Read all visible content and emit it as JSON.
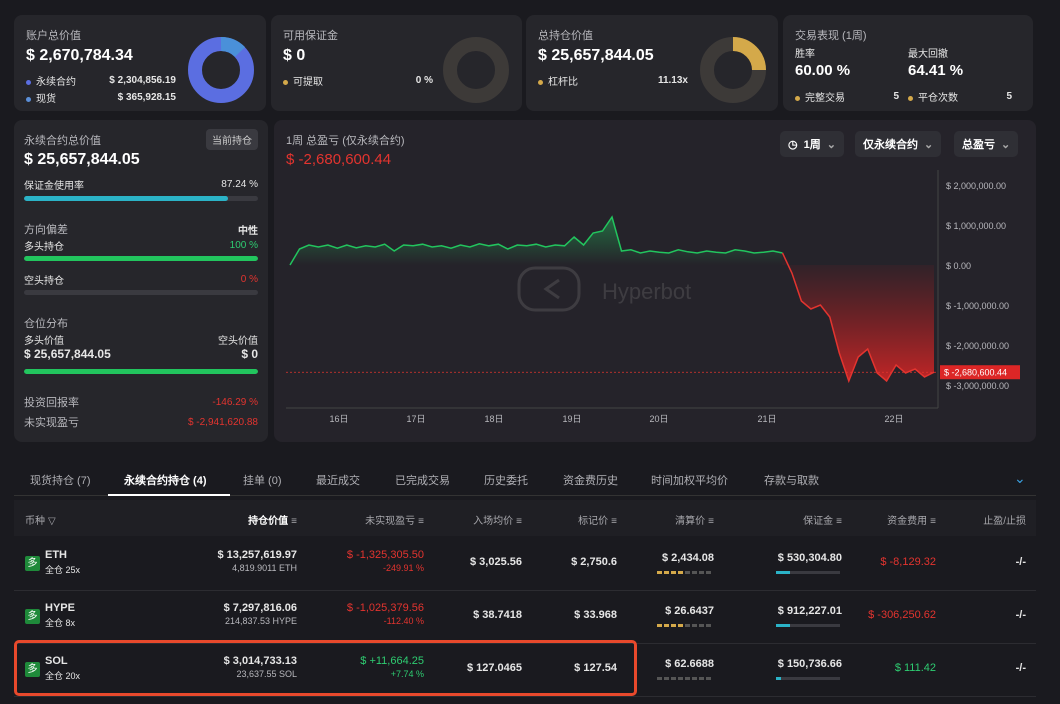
{
  "summary": {
    "account": {
      "label": "账户总价值",
      "value": "$ 2,670,784.34",
      "perp_label": "永续合约",
      "perp_value": "$ 2,304,856.19",
      "spot_label": "现货",
      "spot_value": "$ 365,928.15"
    },
    "margin": {
      "label": "可用保证金",
      "value": "$ 0",
      "withdraw_label": "可提取",
      "withdraw_value": "0 %"
    },
    "position": {
      "label": "总持仓价值",
      "value": "$ 25,657,844.05",
      "leverage_label": "杠杆比",
      "leverage_value": "11.13x"
    },
    "trade": {
      "label": "交易表现 (1周)",
      "win_label": "胜率",
      "win_value": "60.00 %",
      "dd_label": "最大回撤",
      "dd_value": "64.41 %",
      "full_label": "完整交易",
      "full_value": "5",
      "close_label": "平仓次数",
      "close_value": "5"
    }
  },
  "perp_panel": {
    "title": "永续合约总价值",
    "tag": "当前持仓",
    "value": "$ 25,657,844.05",
    "margin_use_label": "保证金使用率",
    "margin_use_value": "87.24 %",
    "margin_use_pct": 87.24,
    "bias_label": "方向偏差",
    "bias_value": "中性",
    "long_label": "多头持仓",
    "long_value": "100 %",
    "long_pct": 100,
    "short_label": "空头持仓",
    "short_value": "0 %",
    "short_pct": 0,
    "dist_label": "仓位分布",
    "long_val_label": "多头价值",
    "long_val": "$ 25,657,844.05",
    "short_val_label": "空头价值",
    "short_val": "$ 0",
    "roi_label": "投资回报率",
    "roi_value": "-146.29 %",
    "upnl_label": "未实现盈亏",
    "upnl_value": "$ -2,941,620.88"
  },
  "chart_panel": {
    "title": "1周 总盈亏 (仅永续合约)",
    "value": "$ -2,680,600.44",
    "btn_period": "1周",
    "btn_scope": "仅永续合约",
    "btn_metric": "总盈亏",
    "watermark": "Hyperbot"
  },
  "chart_data": {
    "type": "area",
    "y_ticks": [
      "$ 2,000,000.00",
      "$ 1,000,000.00",
      "$ 0.00",
      "$ -1,000,000.00",
      "$ -2,000,000.00",
      "$ -3,000,000.00"
    ],
    "x_ticks": [
      "16日",
      "17日",
      "18日",
      "19日",
      "20日",
      "21日",
      "22日"
    ],
    "current_label": "$ -2,680,600.44",
    "ylim": [
      -3000000,
      2000000
    ],
    "values": [
      0,
      400000,
      500000,
      450000,
      500000,
      420000,
      500000,
      430000,
      480000,
      450000,
      520000,
      350000,
      500000,
      480000,
      520000,
      450000,
      480000,
      420000,
      500000,
      450000,
      530000,
      480000,
      520000,
      400000,
      500000,
      480000,
      520000,
      450000,
      500000,
      480000,
      700000,
      500000,
      800000,
      850000,
      1200000,
      350000,
      380000,
      300000,
      350000,
      320000,
      300000,
      380000,
      330000,
      300000,
      350000,
      320000,
      300000,
      380000,
      350000,
      300000,
      320000,
      350000,
      300000,
      -200000,
      -900000,
      -1100000,
      -1000000,
      -1300000,
      -2200000,
      -2900000,
      -2300000,
      -2100000,
      -2700000,
      -2900000,
      -2500000,
      -2700000,
      -2600000,
      -2800000,
      -2680600
    ]
  },
  "tabs": [
    "现货持仓 (7)",
    "永续合约持仓 (4)",
    "挂单 (0)",
    "最近成交",
    "已完成交易",
    "历史委托",
    "资金费历史",
    "时间加权平均价",
    "存款与取款"
  ],
  "table": {
    "headers": [
      "币种",
      "持仓价值",
      "未实现盈亏",
      "入场均价",
      "标记价",
      "清算价",
      "保证金",
      "资金费用",
      "止盈/止损"
    ],
    "rows": [
      {
        "badge": "多",
        "coin": "ETH",
        "mode": "全仓 25x",
        "value": "$ 13,257,619.97",
        "size": "4,819.9011 ETH",
        "pnl": "$ -1,325,305.50",
        "pnl_pct": "-249.91 %",
        "entry": "$ 3,025.56",
        "mark": "$ 2,750.6",
        "liq": "$ 2,434.08",
        "margin": "$ 530,304.80",
        "funding": "$ -8,129.32",
        "tpsl": "-/-"
      },
      {
        "badge": "多",
        "coin": "HYPE",
        "mode": "全仓 8x",
        "value": "$ 7,297,816.06",
        "size": "214,837.53 HYPE",
        "pnl": "$ -1,025,379.56",
        "pnl_pct": "-112.40 %",
        "entry": "$ 38.7418",
        "mark": "$ 33.968",
        "liq": "$ 26.6437",
        "margin": "$ 912,227.01",
        "funding": "$ -306,250.62",
        "tpsl": "-/-"
      },
      {
        "badge": "多",
        "coin": "SOL",
        "mode": "全仓 20x",
        "value": "$ 3,014,733.13",
        "size": "23,637.55 SOL",
        "pnl": "$ +11,664.25",
        "pnl_pct": "+7.74 %",
        "entry": "$ 127.0465",
        "mark": "$ 127.54",
        "liq": "$ 62.6688",
        "margin": "$ 150,736.66",
        "funding": "$ 111.42",
        "tpsl": "-/-"
      }
    ]
  },
  "colors": {
    "accent_blue": "#5b6ee1",
    "gold": "#d4a94a",
    "cyan": "#2bb3c7",
    "green": "#22c55e",
    "red": "#e3342f",
    "highlight": "#e8492c"
  }
}
